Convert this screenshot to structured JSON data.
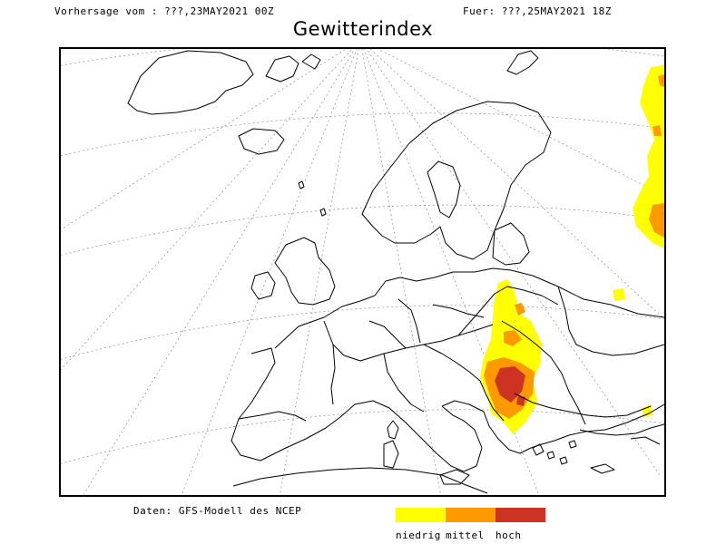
{
  "header": {
    "left": "Vorhersage vom : ???,23MAY2021 00Z",
    "right": "Fuer: ???,25MAY2021 18Z"
  },
  "title": "Gewitterindex",
  "footer": {
    "source": "Daten: GFS-Modell des NCEP"
  },
  "legend": [
    {
      "label": "niedrig",
      "color": "#ffff00"
    },
    {
      "label": "mittel",
      "color": "#ff9900"
    },
    {
      "label": "hoch",
      "color": "#cc3322"
    }
  ],
  "map": {
    "land_outline_color": "#000000",
    "graticule_color": "#9a9a9a",
    "regions": [
      "Europe",
      "Balkans",
      "Greece",
      "Turkey",
      "Caucasus"
    ]
  }
}
